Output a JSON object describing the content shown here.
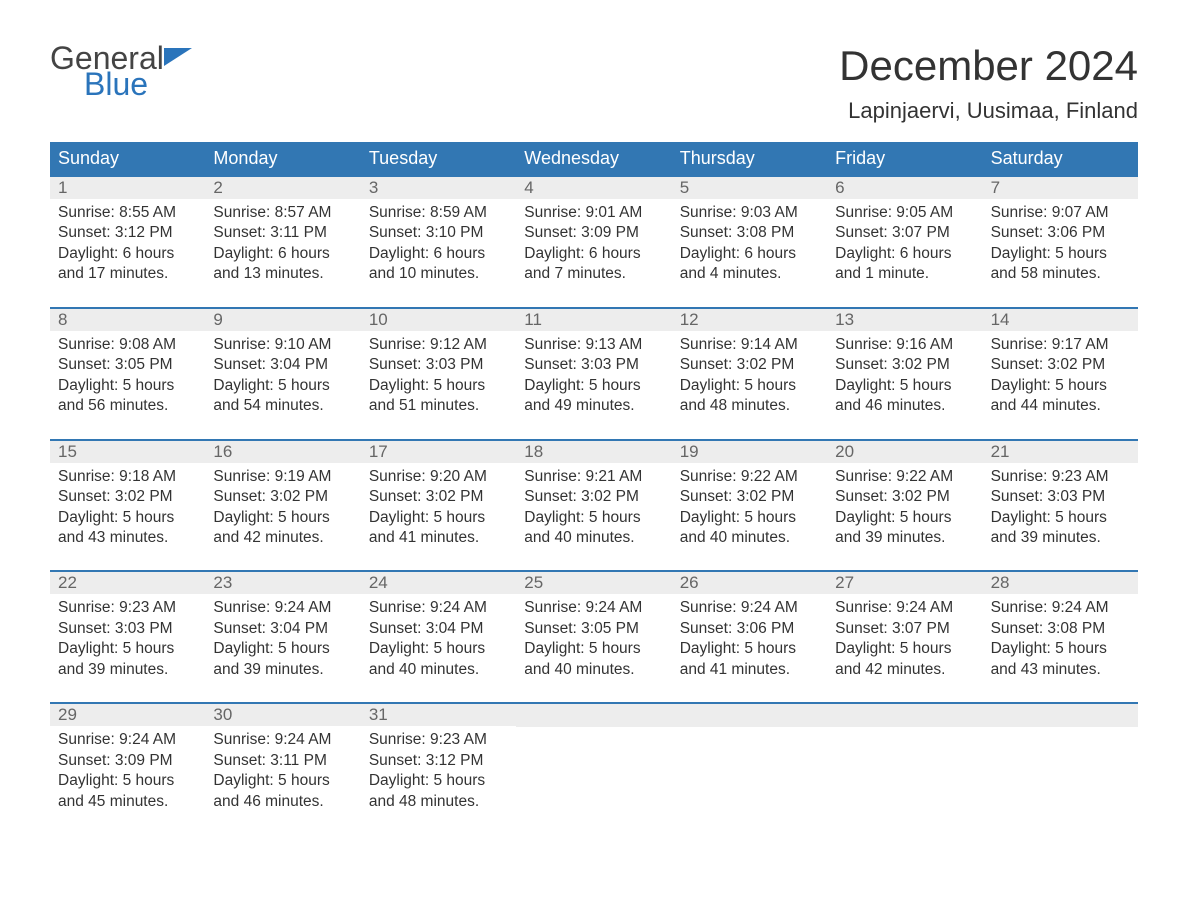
{
  "logo": {
    "line1": "General",
    "line2": "Blue"
  },
  "title": "December 2024",
  "location": "Lapinjaervi, Uusimaa, Finland",
  "colors": {
    "header_bg": "#3277b3",
    "header_text": "#ffffff",
    "day_bar_bg": "#ededed",
    "day_num_color": "#666666",
    "text_color": "#333333",
    "logo_blue": "#2a74bb",
    "week_border": "#3277b3"
  },
  "layout": {
    "columns": 7,
    "rows": 5
  },
  "day_names": [
    "Sunday",
    "Monday",
    "Tuesday",
    "Wednesday",
    "Thursday",
    "Friday",
    "Saturday"
  ],
  "weeks": [
    [
      {
        "n": "1",
        "sunrise": "8:55 AM",
        "sunset": "3:12 PM",
        "dl1": "6 hours",
        "dl2": "and 17 minutes."
      },
      {
        "n": "2",
        "sunrise": "8:57 AM",
        "sunset": "3:11 PM",
        "dl1": "6 hours",
        "dl2": "and 13 minutes."
      },
      {
        "n": "3",
        "sunrise": "8:59 AM",
        "sunset": "3:10 PM",
        "dl1": "6 hours",
        "dl2": "and 10 minutes."
      },
      {
        "n": "4",
        "sunrise": "9:01 AM",
        "sunset": "3:09 PM",
        "dl1": "6 hours",
        "dl2": "and 7 minutes."
      },
      {
        "n": "5",
        "sunrise": "9:03 AM",
        "sunset": "3:08 PM",
        "dl1": "6 hours",
        "dl2": "and 4 minutes."
      },
      {
        "n": "6",
        "sunrise": "9:05 AM",
        "sunset": "3:07 PM",
        "dl1": "6 hours",
        "dl2": "and 1 minute."
      },
      {
        "n": "7",
        "sunrise": "9:07 AM",
        "sunset": "3:06 PM",
        "dl1": "5 hours",
        "dl2": "and 58 minutes."
      }
    ],
    [
      {
        "n": "8",
        "sunrise": "9:08 AM",
        "sunset": "3:05 PM",
        "dl1": "5 hours",
        "dl2": "and 56 minutes."
      },
      {
        "n": "9",
        "sunrise": "9:10 AM",
        "sunset": "3:04 PM",
        "dl1": "5 hours",
        "dl2": "and 54 minutes."
      },
      {
        "n": "10",
        "sunrise": "9:12 AM",
        "sunset": "3:03 PM",
        "dl1": "5 hours",
        "dl2": "and 51 minutes."
      },
      {
        "n": "11",
        "sunrise": "9:13 AM",
        "sunset": "3:03 PM",
        "dl1": "5 hours",
        "dl2": "and 49 minutes."
      },
      {
        "n": "12",
        "sunrise": "9:14 AM",
        "sunset": "3:02 PM",
        "dl1": "5 hours",
        "dl2": "and 48 minutes."
      },
      {
        "n": "13",
        "sunrise": "9:16 AM",
        "sunset": "3:02 PM",
        "dl1": "5 hours",
        "dl2": "and 46 minutes."
      },
      {
        "n": "14",
        "sunrise": "9:17 AM",
        "sunset": "3:02 PM",
        "dl1": "5 hours",
        "dl2": "and 44 minutes."
      }
    ],
    [
      {
        "n": "15",
        "sunrise": "9:18 AM",
        "sunset": "3:02 PM",
        "dl1": "5 hours",
        "dl2": "and 43 minutes."
      },
      {
        "n": "16",
        "sunrise": "9:19 AM",
        "sunset": "3:02 PM",
        "dl1": "5 hours",
        "dl2": "and 42 minutes."
      },
      {
        "n": "17",
        "sunrise": "9:20 AM",
        "sunset": "3:02 PM",
        "dl1": "5 hours",
        "dl2": "and 41 minutes."
      },
      {
        "n": "18",
        "sunrise": "9:21 AM",
        "sunset": "3:02 PM",
        "dl1": "5 hours",
        "dl2": "and 40 minutes."
      },
      {
        "n": "19",
        "sunrise": "9:22 AM",
        "sunset": "3:02 PM",
        "dl1": "5 hours",
        "dl2": "and 40 minutes."
      },
      {
        "n": "20",
        "sunrise": "9:22 AM",
        "sunset": "3:02 PM",
        "dl1": "5 hours",
        "dl2": "and 39 minutes."
      },
      {
        "n": "21",
        "sunrise": "9:23 AM",
        "sunset": "3:03 PM",
        "dl1": "5 hours",
        "dl2": "and 39 minutes."
      }
    ],
    [
      {
        "n": "22",
        "sunrise": "9:23 AM",
        "sunset": "3:03 PM",
        "dl1": "5 hours",
        "dl2": "and 39 minutes."
      },
      {
        "n": "23",
        "sunrise": "9:24 AM",
        "sunset": "3:04 PM",
        "dl1": "5 hours",
        "dl2": "and 39 minutes."
      },
      {
        "n": "24",
        "sunrise": "9:24 AM",
        "sunset": "3:04 PM",
        "dl1": "5 hours",
        "dl2": "and 40 minutes."
      },
      {
        "n": "25",
        "sunrise": "9:24 AM",
        "sunset": "3:05 PM",
        "dl1": "5 hours",
        "dl2": "and 40 minutes."
      },
      {
        "n": "26",
        "sunrise": "9:24 AM",
        "sunset": "3:06 PM",
        "dl1": "5 hours",
        "dl2": "and 41 minutes."
      },
      {
        "n": "27",
        "sunrise": "9:24 AM",
        "sunset": "3:07 PM",
        "dl1": "5 hours",
        "dl2": "and 42 minutes."
      },
      {
        "n": "28",
        "sunrise": "9:24 AM",
        "sunset": "3:08 PM",
        "dl1": "5 hours",
        "dl2": "and 43 minutes."
      }
    ],
    [
      {
        "n": "29",
        "sunrise": "9:24 AM",
        "sunset": "3:09 PM",
        "dl1": "5 hours",
        "dl2": "and 45 minutes."
      },
      {
        "n": "30",
        "sunrise": "9:24 AM",
        "sunset": "3:11 PM",
        "dl1": "5 hours",
        "dl2": "and 46 minutes."
      },
      {
        "n": "31",
        "sunrise": "9:23 AM",
        "sunset": "3:12 PM",
        "dl1": "5 hours",
        "dl2": "and 48 minutes."
      },
      null,
      null,
      null,
      null
    ]
  ],
  "labels": {
    "sunrise_prefix": "Sunrise: ",
    "sunset_prefix": "Sunset: ",
    "daylight_prefix": "Daylight: "
  }
}
